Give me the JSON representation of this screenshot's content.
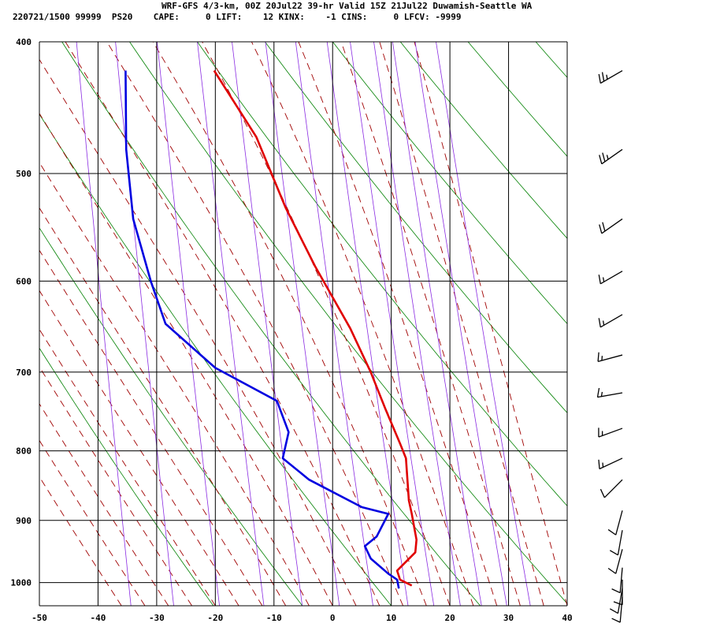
{
  "header": {
    "title": "WRF-GFS 4/3-km, 00Z 20Jul22 39-hr Valid 15Z 21Jul22 Duwamish-Seattle WA",
    "stats": "220721/1500 99999  PS20    CAPE:     0 LIFT:    12 KINX:    -1 CINS:     0 LFCV: -9999"
  },
  "chart_data": {
    "type": "line",
    "title": "",
    "xlabel": "",
    "ylabel": "",
    "xlim": [
      -50,
      40
    ],
    "ylim": [
      1040,
      400
    ],
    "y_scale": "log-pressure",
    "grid": true,
    "x_ticks": [
      -50,
      -40,
      -30,
      -20,
      -10,
      0,
      10,
      20,
      30,
      40
    ],
    "y_ticks": [
      400,
      500,
      600,
      700,
      800,
      900,
      1000
    ],
    "series": [
      {
        "color": "#e00000",
        "points": [
          [
            -20.2,
            420
          ],
          [
            -13,
            470
          ],
          [
            -8,
            530
          ],
          [
            -3,
            585
          ],
          [
            3,
            650
          ],
          [
            6.5,
            700
          ],
          [
            9,
            745
          ],
          [
            11.5,
            790
          ],
          [
            12.5,
            810
          ],
          [
            13,
            870
          ],
          [
            13.5,
            890
          ],
          [
            14.3,
            930
          ],
          [
            14.1,
            950
          ],
          [
            12,
            970
          ],
          [
            11,
            980
          ],
          [
            11.5,
            995
          ],
          [
            13.5,
            1005
          ]
        ]
      },
      {
        "color": "#0000e0",
        "points": [
          [
            -35.3,
            420
          ],
          [
            -35.2,
            480
          ],
          [
            -34,
            540
          ],
          [
            -31,
            600
          ],
          [
            -28.5,
            645
          ],
          [
            -20,
            695
          ],
          [
            -9.5,
            735
          ],
          [
            -7.5,
            775
          ],
          [
            -8.5,
            810
          ],
          [
            -4,
            840
          ],
          [
            5,
            880
          ],
          [
            9.5,
            890
          ],
          [
            7.5,
            925
          ],
          [
            5.5,
            940
          ],
          [
            6.5,
            960
          ],
          [
            9.5,
            985
          ],
          [
            11,
            995
          ],
          [
            11.3,
            1010
          ]
        ]
      }
    ],
    "background_lines": {
      "isotherm_color": "#000000",
      "dry_adiabat_color": "#008000",
      "moist_adiabat_color": "#a00000",
      "mixing_ratio_color": "#8a2be2"
    },
    "wind_barbs": [
      {
        "pressure": 420,
        "direction_deg": 240,
        "speed_kt": 25
      },
      {
        "pressure": 480,
        "direction_deg": 235,
        "speed_kt": 25
      },
      {
        "pressure": 540,
        "direction_deg": 235,
        "speed_kt": 20
      },
      {
        "pressure": 590,
        "direction_deg": 240,
        "speed_kt": 15
      },
      {
        "pressure": 635,
        "direction_deg": 240,
        "speed_kt": 15
      },
      {
        "pressure": 680,
        "direction_deg": 255,
        "speed_kt": 15
      },
      {
        "pressure": 725,
        "direction_deg": 260,
        "speed_kt": 15
      },
      {
        "pressure": 770,
        "direction_deg": 250,
        "speed_kt": 15
      },
      {
        "pressure": 810,
        "direction_deg": 245,
        "speed_kt": 15
      },
      {
        "pressure": 840,
        "direction_deg": 225,
        "speed_kt": 10
      },
      {
        "pressure": 885,
        "direction_deg": 195,
        "speed_kt": 10
      },
      {
        "pressure": 915,
        "direction_deg": 190,
        "speed_kt": 10
      },
      {
        "pressure": 945,
        "direction_deg": 195,
        "speed_kt": 10
      },
      {
        "pressure": 975,
        "direction_deg": 185,
        "speed_kt": 10
      },
      {
        "pressure": 995,
        "direction_deg": 180,
        "speed_kt": 10
      },
      {
        "pressure": 1010,
        "direction_deg": 190,
        "speed_kt": 10
      },
      {
        "pressure": 1025,
        "direction_deg": 185,
        "speed_kt": 10
      }
    ]
  }
}
